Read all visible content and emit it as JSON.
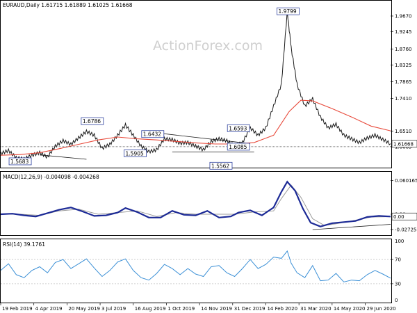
{
  "chart_data": [
    {
      "type": "candlestick",
      "panel": "price",
      "title": "EURAUD,Daily  1.61715  1.61889  1.61025  1.61668",
      "watermark": "ActionForex.com",
      "y_ticks": [
        1.967,
        1.9245,
        1.876,
        1.8325,
        1.7865,
        1.741,
        1.651,
        1.6085
      ],
      "ylim": [
        1.553,
        1.988
      ],
      "current_price": "1.61668",
      "level_line": 1.6085,
      "colors": {
        "price": "#1a1a1a",
        "ma": "#e8493a",
        "box_border": "#2b3f9e",
        "label_current_bg": "#ffffff"
      },
      "annotations": [
        {
          "text": "1.5683",
          "x": 0.05,
          "y": 1.5683
        },
        {
          "text": "1.6786",
          "x": 0.235,
          "y": 1.6786
        },
        {
          "text": "1.5905",
          "x": 0.345,
          "y": 1.5905
        },
        {
          "text": "1.6432",
          "x": 0.39,
          "y": 1.6432
        },
        {
          "text": "1.5562",
          "x": 0.565,
          "y": 1.5562
        },
        {
          "text": "1.6085",
          "x": 0.61,
          "y": 1.6085
        },
        {
          "text": "1.6593",
          "x": 0.61,
          "y": 1.6593
        },
        {
          "text": "1.9799",
          "x": 0.737,
          "y": 1.9799
        }
      ],
      "ma_points": [
        [
          0.0,
          1.585
        ],
        [
          0.05,
          1.587
        ],
        [
          0.1,
          1.592
        ],
        [
          0.15,
          1.603
        ],
        [
          0.2,
          1.615
        ],
        [
          0.25,
          1.627
        ],
        [
          0.3,
          1.635
        ],
        [
          0.35,
          1.63
        ],
        [
          0.4,
          1.627
        ],
        [
          0.45,
          1.623
        ],
        [
          0.5,
          1.619
        ],
        [
          0.55,
          1.616
        ],
        [
          0.6,
          1.616
        ],
        [
          0.65,
          1.62
        ],
        [
          0.7,
          1.64
        ],
        [
          0.74,
          1.705
        ],
        [
          0.77,
          1.736
        ],
        [
          0.8,
          1.734
        ],
        [
          0.85,
          1.713
        ],
        [
          0.9,
          1.69
        ],
        [
          0.95,
          1.665
        ],
        [
          1.0,
          1.652
        ]
      ],
      "price_points": [
        [
          0.0,
          1.59
        ],
        [
          0.02,
          1.598
        ],
        [
          0.04,
          1.578
        ],
        [
          0.06,
          1.575
        ],
        [
          0.08,
          1.585
        ],
        [
          0.1,
          1.592
        ],
        [
          0.12,
          1.58
        ],
        [
          0.14,
          1.61
        ],
        [
          0.16,
          1.625
        ],
        [
          0.18,
          1.615
        ],
        [
          0.2,
          1.633
        ],
        [
          0.22,
          1.65
        ],
        [
          0.24,
          1.64
        ],
        [
          0.26,
          1.604
        ],
        [
          0.28,
          1.615
        ],
        [
          0.3,
          1.64
        ],
        [
          0.32,
          1.668
        ],
        [
          0.34,
          1.64
        ],
        [
          0.36,
          1.61
        ],
        [
          0.38,
          1.595
        ],
        [
          0.4,
          1.6
        ],
        [
          0.42,
          1.63
        ],
        [
          0.44,
          1.628
        ],
        [
          0.46,
          1.618
        ],
        [
          0.48,
          1.62
        ],
        [
          0.5,
          1.61
        ],
        [
          0.52,
          1.6
        ],
        [
          0.54,
          1.623
        ],
        [
          0.56,
          1.63
        ],
        [
          0.58,
          1.625
        ],
        [
          0.6,
          1.61
        ],
        [
          0.62,
          1.62
        ],
        [
          0.64,
          1.66
        ],
        [
          0.66,
          1.64
        ],
        [
          0.68,
          1.66
        ],
        [
          0.7,
          1.72
        ],
        [
          0.72,
          1.78
        ],
        [
          0.735,
          1.979
        ],
        [
          0.745,
          1.88
        ],
        [
          0.76,
          1.78
        ],
        [
          0.78,
          1.72
        ],
        [
          0.8,
          1.74
        ],
        [
          0.82,
          1.69
        ],
        [
          0.84,
          1.66
        ],
        [
          0.86,
          1.67
        ],
        [
          0.88,
          1.64
        ],
        [
          0.9,
          1.63
        ],
        [
          0.92,
          1.62
        ],
        [
          0.94,
          1.632
        ],
        [
          0.96,
          1.64
        ],
        [
          0.98,
          1.628
        ],
        [
          1.0,
          1.6167
        ]
      ],
      "trendlines": [
        {
          "from": [
            0.1,
            1.586
          ],
          "to": [
            0.22,
            1.574
          ]
        },
        {
          "from": [
            0.37,
            1.65
          ],
          "to": [
            0.64,
            1.617
          ]
        },
        {
          "from": [
            0.44,
            1.594
          ],
          "to": [
            0.65,
            1.594
          ]
        }
      ]
    },
    {
      "type": "line",
      "panel": "macd",
      "title": "MACD(12,26,9) -0.004098 -0.004268",
      "y_ticks": [
        0.060165,
        0.0,
        -0.02725
      ],
      "ylim": [
        -0.036,
        0.072
      ],
      "current_value": "0.00",
      "colors": {
        "macd": "#1c2a96",
        "signal": "#9b9b9b",
        "trend": "#1a1a1a"
      },
      "macd_points": [
        [
          0.0,
          0.0
        ],
        [
          0.03,
          0.001
        ],
        [
          0.06,
          -0.002
        ],
        [
          0.09,
          -0.004
        ],
        [
          0.12,
          0.002
        ],
        [
          0.15,
          0.008
        ],
        [
          0.18,
          0.012
        ],
        [
          0.21,
          0.005
        ],
        [
          0.24,
          -0.003
        ],
        [
          0.27,
          -0.002
        ],
        [
          0.3,
          0.003
        ],
        [
          0.32,
          0.011
        ],
        [
          0.35,
          0.004
        ],
        [
          0.38,
          -0.006
        ],
        [
          0.41,
          -0.006
        ],
        [
          0.44,
          0.006
        ],
        [
          0.47,
          -0.001
        ],
        [
          0.5,
          -0.002
        ],
        [
          0.53,
          0.006
        ],
        [
          0.56,
          -0.006
        ],
        [
          0.59,
          -0.004
        ],
        [
          0.61,
          0.003
        ],
        [
          0.64,
          0.007
        ],
        [
          0.67,
          -0.002
        ],
        [
          0.7,
          0.012
        ],
        [
          0.72,
          0.04
        ],
        [
          0.735,
          0.058
        ],
        [
          0.755,
          0.042
        ],
        [
          0.775,
          0.01
        ],
        [
          0.795,
          -0.015
        ],
        [
          0.82,
          -0.022
        ],
        [
          0.85,
          -0.016
        ],
        [
          0.88,
          -0.014
        ],
        [
          0.91,
          -0.012
        ],
        [
          0.94,
          -0.005
        ],
        [
          0.97,
          -0.003
        ],
        [
          1.0,
          -0.0041
        ]
      ],
      "signal_points": [
        [
          0.0,
          0.0
        ],
        [
          0.05,
          0.0
        ],
        [
          0.1,
          -0.002
        ],
        [
          0.15,
          0.006
        ],
        [
          0.2,
          0.009
        ],
        [
          0.25,
          0.0
        ],
        [
          0.3,
          0.003
        ],
        [
          0.35,
          0.006
        ],
        [
          0.4,
          -0.004
        ],
        [
          0.45,
          0.003
        ],
        [
          0.5,
          0.0
        ],
        [
          0.55,
          0.0
        ],
        [
          0.6,
          0.0
        ],
        [
          0.65,
          0.004
        ],
        [
          0.7,
          0.006
        ],
        [
          0.72,
          0.028
        ],
        [
          0.745,
          0.052
        ],
        [
          0.77,
          0.03
        ],
        [
          0.8,
          -0.008
        ],
        [
          0.83,
          -0.02
        ],
        [
          0.86,
          -0.017
        ],
        [
          0.9,
          -0.012
        ],
        [
          0.95,
          -0.005
        ],
        [
          1.0,
          -0.0043
        ]
      ],
      "trendline": {
        "from": [
          0.8,
          -0.0275
        ],
        "to": [
          1.0,
          -0.018
        ]
      }
    },
    {
      "type": "line",
      "panel": "rsi",
      "title": "RSI(14) 39.1761",
      "y_ticks": [
        70,
        30
      ],
      "ylim": [
        0,
        100
      ],
      "extra_ticks": [
        "100",
        "0"
      ],
      "current_value": "39.1761",
      "colors": {
        "rsi": "#3a8fd6",
        "level": "#b0b0b0"
      },
      "rsi_points": [
        [
          0.0,
          52
        ],
        [
          0.02,
          63
        ],
        [
          0.04,
          45
        ],
        [
          0.06,
          40
        ],
        [
          0.08,
          52
        ],
        [
          0.1,
          58
        ],
        [
          0.12,
          48
        ],
        [
          0.14,
          65
        ],
        [
          0.16,
          70
        ],
        [
          0.18,
          55
        ],
        [
          0.2,
          63
        ],
        [
          0.22,
          71
        ],
        [
          0.24,
          56
        ],
        [
          0.26,
          42
        ],
        [
          0.28,
          52
        ],
        [
          0.3,
          66
        ],
        [
          0.32,
          71
        ],
        [
          0.34,
          52
        ],
        [
          0.36,
          40
        ],
        [
          0.38,
          36
        ],
        [
          0.4,
          47
        ],
        [
          0.42,
          62
        ],
        [
          0.44,
          55
        ],
        [
          0.46,
          45
        ],
        [
          0.48,
          55
        ],
        [
          0.5,
          46
        ],
        [
          0.52,
          42
        ],
        [
          0.54,
          58
        ],
        [
          0.56,
          60
        ],
        [
          0.58,
          48
        ],
        [
          0.6,
          42
        ],
        [
          0.62,
          55
        ],
        [
          0.64,
          70
        ],
        [
          0.66,
          55
        ],
        [
          0.68,
          62
        ],
        [
          0.7,
          74
        ],
        [
          0.72,
          72
        ],
        [
          0.735,
          84
        ],
        [
          0.745,
          64
        ],
        [
          0.76,
          48
        ],
        [
          0.78,
          40
        ],
        [
          0.8,
          60
        ],
        [
          0.82,
          35
        ],
        [
          0.84,
          36
        ],
        [
          0.86,
          47
        ],
        [
          0.88,
          33
        ],
        [
          0.9,
          36
        ],
        [
          0.92,
          35
        ],
        [
          0.94,
          45
        ],
        [
          0.96,
          52
        ],
        [
          0.98,
          46
        ],
        [
          1.0,
          39.18
        ]
      ]
    }
  ],
  "x_axis": {
    "labels": [
      "19 Feb 2019",
      "4 Apr 2019",
      "20 May 2019",
      "3 Jul 2019",
      "16 Aug 2019",
      "1 Oct 2019",
      "14 Nov 2019",
      "31 Dec 2019",
      "14 Feb 2020",
      "31 Mar 2020",
      "14 May 2020",
      "29 Jun 2020"
    ],
    "positions": [
      0.0,
      0.085,
      0.17,
      0.255,
      0.34,
      0.425,
      0.51,
      0.595,
      0.68,
      0.765,
      0.85,
      0.935
    ]
  }
}
